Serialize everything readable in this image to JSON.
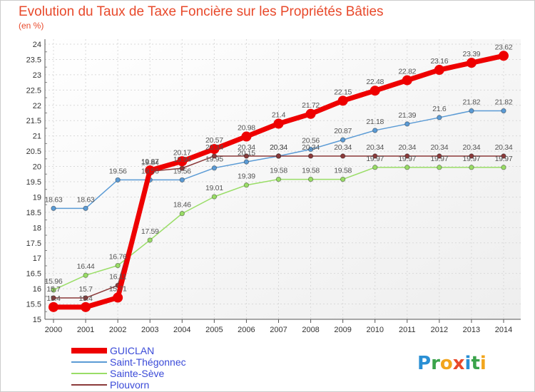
{
  "chart_data": {
    "type": "line",
    "title": "Evolution du Taux de Taxe Foncière sur les Propriétés Bâties",
    "subtitle": "(en %)",
    "xlabel": "",
    "ylabel": "",
    "ylim": [
      15,
      24
    ],
    "x": [
      "2000",
      "2001",
      "2002",
      "2003",
      "2004",
      "2005",
      "2006",
      "2007",
      "2008",
      "2009",
      "2010",
      "2011",
      "2012",
      "2013",
      "2014"
    ],
    "yticks": [
      "15",
      "15.5",
      "16",
      "16.5",
      "17",
      "17.5",
      "18",
      "18.5",
      "19",
      "19.5",
      "20",
      "20.5",
      "21",
      "21.5",
      "22",
      "22.5",
      "23",
      "23.5",
      "24"
    ],
    "series": [
      {
        "name": "Saint-Thégonnec",
        "color": "#5b9bd5",
        "values": [
          18.63,
          18.63,
          19.56,
          19.56,
          19.56,
          19.95,
          20.15,
          20.34,
          20.56,
          20.87,
          21.18,
          21.39,
          21.6,
          21.82,
          21.82
        ],
        "labels": [
          "18.63",
          "18.63",
          "19.56",
          "19.56",
          "19.56",
          "19.95",
          "20.15",
          "20.34",
          "20.56",
          "20.87",
          "21.18",
          "21.39",
          "21.6",
          "21.82",
          "21.82"
        ]
      },
      {
        "name": "Sainte-Sève",
        "color": "#99dd66",
        "values": [
          15.96,
          16.44,
          16.76,
          17.59,
          18.46,
          19.01,
          19.39,
          19.58,
          19.58,
          19.58,
          19.97,
          19.97,
          19.97,
          19.97,
          19.97
        ],
        "labels": [
          "15.96",
          "16.44",
          "16.76",
          "17.59",
          "18.46",
          "19.01",
          "19.39",
          "19.58",
          "19.58",
          "19.58",
          "19.97",
          "19.97",
          "19.97",
          "19.97",
          "19.97"
        ]
      },
      {
        "name": "Plouvorn",
        "color": "#8b3a3a",
        "values": [
          15.7,
          15.7,
          16.11,
          19.84,
          19.94,
          20.34,
          20.34,
          20.34,
          20.34,
          20.34,
          20.34,
          20.34,
          20.34,
          20.34,
          20.34
        ],
        "labels": [
          "15.7",
          "15.7",
          "16.11",
          "19.84",
          "19.94",
          "20.34",
          "20.34",
          "20.34",
          "20.34",
          "20.34",
          "20.34",
          "20.34",
          "20.34",
          "20.34",
          "20.34"
        ]
      },
      {
        "name": "GUICLAN",
        "color": "#ee0000",
        "values": [
          15.4,
          15.4,
          15.71,
          19.87,
          20.17,
          20.57,
          20.98,
          21.4,
          21.72,
          22.15,
          22.48,
          22.82,
          23.16,
          23.39,
          23.62
        ],
        "labels": [
          "15.4",
          "15.4",
          "15.71",
          "19.87",
          "20.17",
          "20.57",
          "20.98",
          "21.4",
          "21.72",
          "22.15",
          "22.48",
          "22.82",
          "23.16",
          "23.39",
          "23.62"
        ]
      }
    ],
    "legend": [
      "GUICLAN",
      "Saint-Thégonnec",
      "Sainte-Sève",
      "Plouvorn"
    ],
    "legend_position": "bottom-left",
    "grid": true
  },
  "logo": {
    "text": "Proxiti",
    "letters": [
      "P",
      "r",
      "o",
      "x",
      "i",
      "t",
      "i"
    ],
    "colors": [
      "#2a8fd4",
      "#3aa34a",
      "#f2a51d",
      "#e8492b",
      "#2a8fd4",
      "#3aa34a",
      "#f2a51d"
    ]
  }
}
